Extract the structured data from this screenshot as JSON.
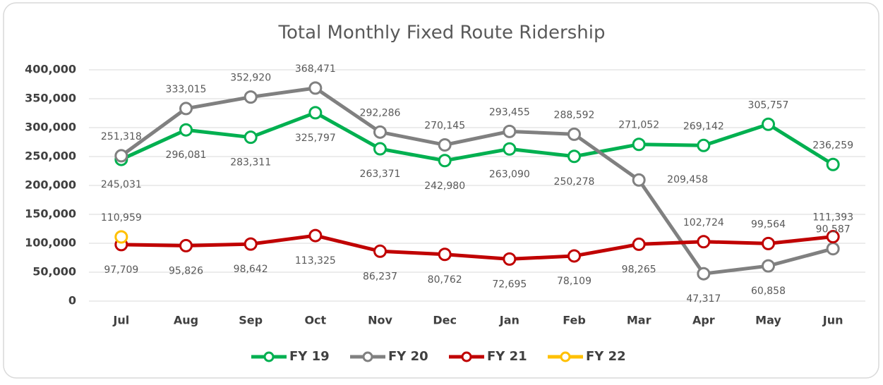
{
  "chart_data": {
    "type": "line",
    "title": "Total Monthly Fixed Route Ridership",
    "categories": [
      "Jul",
      "Aug",
      "Sep",
      "Oct",
      "Nov",
      "Dec",
      "Jan",
      "Feb",
      "Mar",
      "Apr",
      "May",
      "Jun"
    ],
    "ylim": [
      0,
      400000
    ],
    "yticks": [
      0,
      {
        "value": 50000,
        "label": "50,000"
      },
      {
        "value": 100000,
        "label": "100,000"
      },
      {
        "value": 150000,
        "label": "150,000"
      },
      {
        "value": 200000,
        "label": "200,000"
      },
      {
        "value": 250000,
        "label": "250,000"
      },
      {
        "value": 300000,
        "label": "300,000"
      },
      {
        "value": 350000,
        "label": "350,000"
      },
      {
        "value": 400000,
        "label": "400,000"
      }
    ],
    "grid": true,
    "legend": "bottom",
    "series": [
      {
        "name": "FY 19",
        "color": "#00b050",
        "values": [
          245031,
          296081,
          283311,
          325797,
          263371,
          242980,
          263090,
          250278,
          271052,
          269142,
          305757,
          236259
        ],
        "value_labels": [
          "245,031",
          "296,081",
          "283,311",
          "325,797",
          "263,371",
          "242,980",
          "263,090",
          "250,278",
          "271,052",
          "269,142",
          "305,757",
          "236,259"
        ]
      },
      {
        "name": "FY 20",
        "color": "#808080",
        "values": [
          251318,
          333015,
          352920,
          368471,
          292286,
          270145,
          293455,
          288592,
          209458,
          47317,
          60858,
          90587
        ],
        "value_labels": [
          "251,318",
          "333,015",
          "352,920",
          "368,471",
          "292,286",
          "270,145",
          "293,455",
          "288,592",
          "209,458",
          "47,317",
          "60,858",
          "90,587"
        ]
      },
      {
        "name": "FY 21",
        "color": "#c00000",
        "values": [
          97709,
          95826,
          98642,
          113325,
          86237,
          80762,
          72695,
          78109,
          98265,
          102724,
          99564,
          111393
        ],
        "value_labels": [
          "97,709",
          "95,826",
          "98,642",
          "113,325",
          "86,237",
          "80,762",
          "72,695",
          "78,109",
          "98,265",
          "102,724",
          "99,564",
          "111,393"
        ]
      },
      {
        "name": "FY 22",
        "color": "#ffc000",
        "values": [
          110959,
          null,
          null,
          null,
          null,
          null,
          null,
          null,
          null,
          null,
          null,
          null
        ],
        "value_labels": [
          "110,959",
          null,
          null,
          null,
          null,
          null,
          null,
          null,
          null,
          null,
          null,
          null
        ]
      }
    ]
  }
}
